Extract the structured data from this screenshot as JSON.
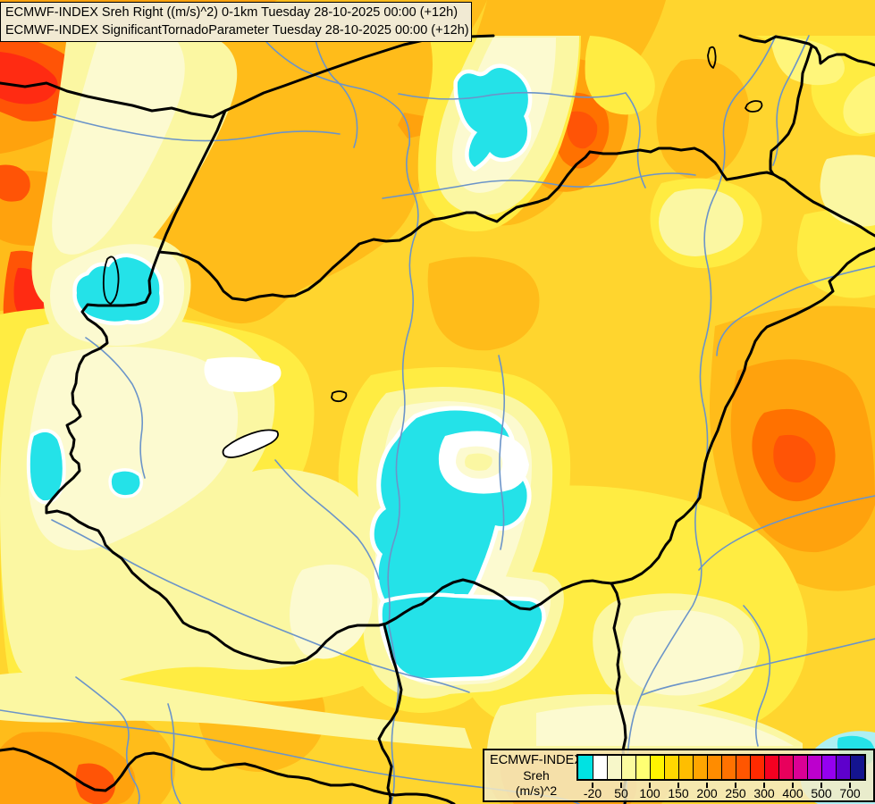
{
  "title_box": {
    "line1": "ECMWF-INDEX Sreh Right ((m/s)^2) 0-1km Tuesday 28-10-2025 00:00 (+12h)",
    "line2": "ECMWF-INDEX SignificantTornadoParameter Tuesday 28-10-2025 00:00 (+12h)",
    "background": "#F1EAD3"
  },
  "legend": {
    "label_line1": "ECMWF-INDEX",
    "label_line2": "Sreh",
    "label_line3": "(m/s)^2",
    "tick_labels": [
      "-20",
      "50",
      "100",
      "150",
      "200",
      "250",
      "300",
      "400",
      "500",
      "700"
    ],
    "swatch_colors": [
      "#00E2E2",
      "#FFFFFF",
      "#F7F7C9",
      "#FBFB9F",
      "#FFFF73",
      "#FFF400",
      "#FFD800",
      "#FFBE00",
      "#FFA500",
      "#FF8C00",
      "#FF7200",
      "#FF5600",
      "#FF2A00",
      "#F50021",
      "#E8005C",
      "#DB0095",
      "#BC00CD",
      "#9500F0",
      "#5E00CC",
      "#14148F"
    ],
    "background": "rgba(243,235,198,0.85)"
  },
  "map": {
    "palette": {
      "cyan": "#24E2E8",
      "pale_cyan": "#AEEFF2",
      "white": "#FFFFFF",
      "cream": "#FCFAD0",
      "pale_yellow": "#FBF7A2",
      "light_yellow": "#FFF67B",
      "yellow": "#FFEC42",
      "gold": "#FFD52E",
      "amber": "#FFBC1A",
      "orange": "#FFA20D",
      "deep_orange": "#FF8A05",
      "dark_orange": "#FF7100",
      "orange_red": "#FF5406",
      "red": "#FF2B12",
      "river": "#6B94C9",
      "border": "#000000",
      "lake": "#FFFFFF"
    }
  }
}
